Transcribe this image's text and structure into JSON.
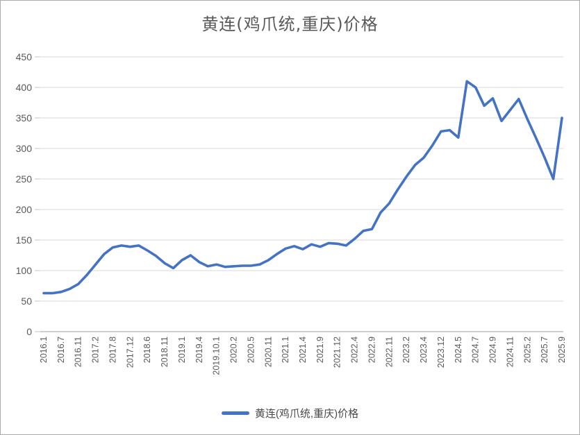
{
  "title": "黄连(鸡爪统,重庆)价格",
  "legend": {
    "label": "黄连(鸡爪统,重庆)价格",
    "swatch_color": "#4472C4"
  },
  "colors": {
    "line": "#4472C4",
    "gridline": "#D9D9D9",
    "axis_line": "#BFBFBF",
    "tick_text": "#595959",
    "title_text": "#595959",
    "frame_border": "#ABABAB"
  },
  "chart_data": {
    "type": "line",
    "title": "黄连(鸡爪统,重庆)价格",
    "xlabel": "",
    "ylabel": "",
    "ylim": [
      0,
      450
    ],
    "y_ticks": [
      0,
      50,
      100,
      150,
      200,
      250,
      300,
      350,
      400,
      450
    ],
    "grid": "horizontal",
    "legend_position": "bottom",
    "x_tick_labels": [
      "2016.1",
      "2016.7",
      "2016.11",
      "2017.2",
      "2017.8",
      "2017.12",
      "2018.6",
      "2018.11",
      "2019.1",
      "2019.4",
      "2019.10.1",
      "2020.2",
      "2020.5",
      "2020.11",
      "2021.1",
      "2021.4",
      "2021.9",
      "2021.12",
      "2022.4",
      "2022.9",
      "2022.11",
      "2023.2",
      "2023.4",
      "2023.12",
      "2024.5",
      "2024.7",
      "2024.9",
      "2024.11",
      "2025.2",
      "2025.7",
      "2025.9"
    ],
    "x_tick_every_n_points": 2,
    "series": [
      {
        "name": "黄连(鸡爪统,重庆)价格",
        "color": "#4472C4",
        "values": [
          63,
          63,
          65,
          70,
          78,
          93,
          110,
          127,
          138,
          141,
          139,
          141,
          133,
          124,
          112,
          104,
          117,
          125,
          114,
          107,
          110,
          106,
          107,
          108,
          108,
          110,
          117,
          127,
          136,
          140,
          135,
          143,
          139,
          145,
          144,
          141,
          152,
          165,
          168,
          195,
          210,
          233,
          254,
          273,
          285,
          305,
          328,
          330,
          318,
          410,
          400,
          370,
          382,
          345,
          363,
          381,
          348,
          317,
          285,
          250,
          350
        ]
      }
    ]
  }
}
